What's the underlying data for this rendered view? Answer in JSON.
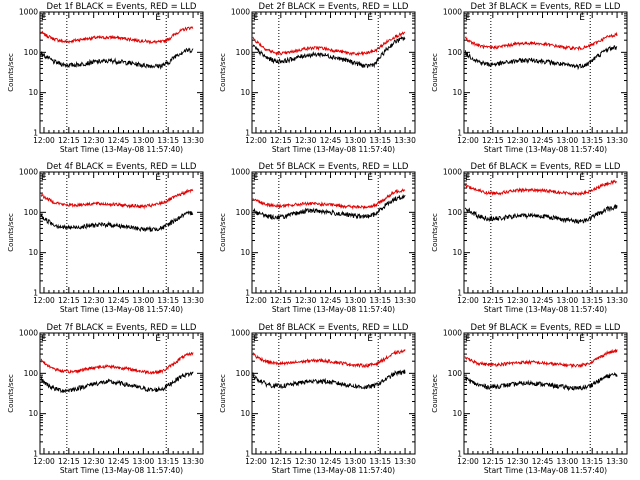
{
  "colors": {
    "events": "#000000",
    "lld": "#e00000",
    "frame": "#000000",
    "background": "#ffffff"
  },
  "chart_data": [
    {
      "type": "line",
      "yscale": "log",
      "grid": false,
      "title": "Det 1f BLACK = Events, RED = LLD",
      "xlabel": "Start Time (13-May-08 11:57:40)",
      "ylabel": "Counts/sec",
      "xtick_labels": [
        "12:00",
        "12:15",
        "12:30",
        "12:45",
        "13:00",
        "13:15",
        "13:30"
      ],
      "xlim": [
        -0.04,
        1.6
      ],
      "ylim": [
        1,
        1000
      ],
      "yticks": [
        1,
        10,
        100,
        1000
      ],
      "x_unit": "hours after 12:00",
      "markers": [
        "E",
        "E"
      ],
      "dotted_lines": [
        0.23,
        1.23
      ],
      "series": [
        {
          "name": "LLD",
          "color": "red",
          "x": [
            -0.03,
            0.0,
            0.1,
            0.2,
            0.25,
            0.35,
            0.5,
            0.7,
            0.85,
            1.0,
            1.1,
            1.18,
            1.25,
            1.33,
            1.42,
            1.5
          ],
          "values": [
            320,
            280,
            215,
            185,
            185,
            205,
            230,
            235,
            215,
            190,
            180,
            180,
            210,
            300,
            380,
            420
          ]
        },
        {
          "name": "Events",
          "color": "black",
          "x": [
            -0.03,
            0.0,
            0.1,
            0.2,
            0.25,
            0.35,
            0.5,
            0.7,
            0.85,
            1.0,
            1.1,
            1.18,
            1.25,
            1.33,
            1.42,
            1.5
          ],
          "values": [
            95,
            85,
            58,
            50,
            48,
            50,
            58,
            62,
            55,
            48,
            46,
            46,
            55,
            85,
            110,
            115
          ]
        }
      ]
    },
    {
      "type": "line",
      "yscale": "log",
      "grid": false,
      "title": "Det 2f BLACK = Events, RED = LLD",
      "xlabel": "Start Time (13-May-08 11:57:40)",
      "ylabel": "Counts/sec",
      "xtick_labels": [
        "12:00",
        "12:15",
        "12:30",
        "12:45",
        "13:00",
        "13:15",
        "13:30"
      ],
      "xlim": [
        -0.04,
        1.6
      ],
      "ylim": [
        1,
        1000
      ],
      "yticks": [
        1,
        10,
        100,
        1000
      ],
      "x_unit": "hours after 12:00",
      "markers": [
        "E",
        "E"
      ],
      "dotted_lines": [
        0.23,
        1.23
      ],
      "series": [
        {
          "name": "LLD",
          "color": "red",
          "x": [
            -0.03,
            0.0,
            0.1,
            0.2,
            0.3,
            0.5,
            0.65,
            0.8,
            1.0,
            1.1,
            1.2,
            1.3,
            1.4,
            1.5
          ],
          "values": [
            230,
            190,
            120,
            95,
            95,
            125,
            130,
            110,
            90,
            95,
            110,
            170,
            250,
            300
          ]
        },
        {
          "name": "Events",
          "color": "black",
          "x": [
            -0.03,
            0.0,
            0.1,
            0.2,
            0.3,
            0.5,
            0.65,
            0.8,
            1.0,
            1.1,
            1.2,
            1.3,
            1.4,
            1.5
          ],
          "values": [
            150,
            120,
            75,
            60,
            62,
            85,
            90,
            75,
            55,
            45,
            52,
            110,
            185,
            230
          ]
        }
      ]
    },
    {
      "type": "line",
      "yscale": "log",
      "grid": false,
      "title": "Det 3f BLACK = Events, RED = LLD",
      "xlabel": "Start Time (13-May-08 11:57:40)",
      "ylabel": "Counts/sec",
      "xtick_labels": [
        "12:00",
        "12:15",
        "12:30",
        "12:45",
        "13:00",
        "13:15",
        "13:30"
      ],
      "xlim": [
        -0.04,
        1.6
      ],
      "ylim": [
        1,
        1000
      ],
      "yticks": [
        1,
        10,
        100,
        1000
      ],
      "x_unit": "hours after 12:00",
      "markers": [
        "E",
        "E"
      ],
      "dotted_lines": [
        0.23,
        1.23
      ],
      "series": [
        {
          "name": "LLD",
          "color": "red",
          "x": [
            -0.03,
            0.0,
            0.1,
            0.2,
            0.3,
            0.5,
            0.65,
            0.8,
            1.0,
            1.1,
            1.2,
            1.3,
            1.4,
            1.5
          ],
          "values": [
            230,
            200,
            150,
            130,
            135,
            165,
            170,
            155,
            130,
            125,
            135,
            180,
            240,
            280
          ]
        },
        {
          "name": "Events",
          "color": "black",
          "x": [
            -0.03,
            0.0,
            0.1,
            0.2,
            0.3,
            0.5,
            0.65,
            0.8,
            1.0,
            1.1,
            1.2,
            1.3,
            1.4,
            1.5
          ],
          "values": [
            100,
            85,
            60,
            50,
            52,
            62,
            65,
            58,
            48,
            45,
            50,
            80,
            120,
            135
          ]
        }
      ]
    },
    {
      "type": "line",
      "yscale": "log",
      "grid": false,
      "title": "Det 4f BLACK = Events, RED = LLD",
      "xlabel": "Start Time (13-May-08 11:57:40)",
      "ylabel": "Counts/sec",
      "xtick_labels": [
        "12:00",
        "12:15",
        "12:30",
        "12:45",
        "13:00",
        "13:15",
        "13:30"
      ],
      "xlim": [
        -0.04,
        1.6
      ],
      "ylim": [
        1,
        1000
      ],
      "yticks": [
        1,
        10,
        100,
        1000
      ],
      "x_unit": "hours after 12:00",
      "markers": [
        "E",
        "E"
      ],
      "dotted_lines": [
        0.23,
        1.23
      ],
      "series": [
        {
          "name": "LLD",
          "color": "red",
          "x": [
            -0.03,
            0.0,
            0.1,
            0.2,
            0.3,
            0.5,
            0.65,
            0.8,
            1.0,
            1.1,
            1.2,
            1.3,
            1.4,
            1.5
          ],
          "values": [
            280,
            240,
            180,
            155,
            150,
            165,
            160,
            150,
            140,
            150,
            175,
            230,
            300,
            360
          ]
        },
        {
          "name": "Events",
          "color": "black",
          "x": [
            -0.03,
            0.0,
            0.1,
            0.2,
            0.3,
            0.5,
            0.65,
            0.8,
            1.0,
            1.1,
            1.2,
            1.3,
            1.4,
            1.5
          ],
          "values": [
            85,
            70,
            50,
            42,
            42,
            48,
            50,
            45,
            38,
            38,
            42,
            60,
            85,
            100
          ]
        }
      ]
    },
    {
      "type": "line",
      "yscale": "log",
      "grid": false,
      "title": "Det 5f BLACK = Events, RED = LLD",
      "xlabel": "Start Time (13-May-08 11:57:40)",
      "ylabel": "Counts/sec",
      "xtick_labels": [
        "12:00",
        "12:15",
        "12:30",
        "12:45",
        "13:00",
        "13:15",
        "13:30"
      ],
      "xlim": [
        -0.04,
        1.6
      ],
      "ylim": [
        1,
        1000
      ],
      "yticks": [
        1,
        10,
        100,
        1000
      ],
      "x_unit": "hours after 12:00",
      "markers": [
        "E",
        "E"
      ],
      "dotted_lines": [
        0.23,
        1.23
      ],
      "series": [
        {
          "name": "LLD",
          "color": "red",
          "x": [
            -0.03,
            0.0,
            0.1,
            0.2,
            0.3,
            0.5,
            0.65,
            0.8,
            1.0,
            1.1,
            1.2,
            1.3,
            1.4,
            1.5
          ],
          "values": [
            220,
            200,
            160,
            145,
            145,
            165,
            160,
            150,
            135,
            135,
            150,
            220,
            320,
            370
          ]
        },
        {
          "name": "Events",
          "color": "black",
          "x": [
            -0.03,
            0.0,
            0.1,
            0.2,
            0.3,
            0.5,
            0.65,
            0.8,
            1.0,
            1.1,
            1.2,
            1.3,
            1.4,
            1.5
          ],
          "values": [
            120,
            100,
            82,
            75,
            80,
            110,
            108,
            95,
            82,
            78,
            90,
            150,
            220,
            250
          ]
        }
      ]
    },
    {
      "type": "line",
      "yscale": "log",
      "grid": false,
      "title": "Det 6f BLACK = Events, RED = LLD",
      "xlabel": "Start Time (13-May-08 11:57:40)",
      "ylabel": "Counts/sec",
      "xtick_labels": [
        "12:00",
        "12:15",
        "12:30",
        "12:45",
        "13:00",
        "13:15",
        "13:30"
      ],
      "xlim": [
        -0.04,
        1.6
      ],
      "ylim": [
        1,
        1000
      ],
      "yticks": [
        1,
        10,
        100,
        1000
      ],
      "x_unit": "hours after 12:00",
      "markers": [
        "E",
        "E"
      ],
      "dotted_lines": [
        0.23,
        1.23
      ],
      "series": [
        {
          "name": "LLD",
          "color": "red",
          "x": [
            -0.03,
            0.0,
            0.1,
            0.2,
            0.3,
            0.5,
            0.65,
            0.8,
            1.0,
            1.1,
            1.2,
            1.3,
            1.4,
            1.5
          ],
          "values": [
            480,
            440,
            350,
            300,
            300,
            350,
            360,
            340,
            300,
            290,
            310,
            400,
            520,
            600
          ]
        },
        {
          "name": "Events",
          "color": "black",
          "x": [
            -0.03,
            0.0,
            0.1,
            0.2,
            0.3,
            0.5,
            0.65,
            0.8,
            1.0,
            1.1,
            1.2,
            1.3,
            1.4,
            1.5
          ],
          "values": [
            130,
            115,
            82,
            70,
            70,
            82,
            85,
            78,
            65,
            60,
            65,
            90,
            120,
            140
          ]
        }
      ]
    },
    {
      "type": "line",
      "yscale": "log",
      "grid": false,
      "title": "Det 7f BLACK = Events, RED = LLD",
      "xlabel": "Start Time (13-May-08 11:57:40)",
      "ylabel": "Counts/sec",
      "xtick_labels": [
        "12:00",
        "12:15",
        "12:30",
        "12:45",
        "13:00",
        "13:15",
        "13:30"
      ],
      "xlim": [
        -0.04,
        1.6
      ],
      "ylim": [
        1,
        1000
      ],
      "yticks": [
        1,
        10,
        100,
        1000
      ],
      "x_unit": "hours after 12:00",
      "markers": [
        "E",
        "E"
      ],
      "dotted_lines": [
        0.23,
        1.23
      ],
      "series": [
        {
          "name": "LLD",
          "color": "red",
          "x": [
            -0.03,
            0.0,
            0.1,
            0.2,
            0.3,
            0.5,
            0.65,
            0.8,
            1.0,
            1.1,
            1.2,
            1.3,
            1.4,
            1.5
          ],
          "values": [
            220,
            180,
            130,
            110,
            110,
            140,
            150,
            135,
            110,
            105,
            115,
            170,
            260,
            320
          ]
        },
        {
          "name": "Events",
          "color": "black",
          "x": [
            -0.03,
            0.0,
            0.1,
            0.2,
            0.3,
            0.5,
            0.65,
            0.8,
            1.0,
            1.1,
            1.2,
            1.3,
            1.4,
            1.5
          ],
          "values": [
            75,
            60,
            42,
            37,
            40,
            55,
            62,
            55,
            42,
            38,
            42,
            62,
            90,
            100
          ]
        }
      ]
    },
    {
      "type": "line",
      "yscale": "log",
      "grid": false,
      "title": "Det 8f BLACK = Events, RED = LLD",
      "xlabel": "Start Time (13-May-08 11:57:40)",
      "ylabel": "Counts/sec",
      "xtick_labels": [
        "12:00",
        "12:15",
        "12:30",
        "12:45",
        "13:00",
        "13:15",
        "13:30"
      ],
      "xlim": [
        -0.04,
        1.6
      ],
      "ylim": [
        1,
        1000
      ],
      "yticks": [
        1,
        10,
        100,
        1000
      ],
      "x_unit": "hours after 12:00",
      "markers": [
        "E",
        "E"
      ],
      "dotted_lines": [
        0.23,
        1.23
      ],
      "series": [
        {
          "name": "LLD",
          "color": "red",
          "x": [
            -0.03,
            0.0,
            0.1,
            0.2,
            0.3,
            0.5,
            0.65,
            0.8,
            1.0,
            1.1,
            1.2,
            1.3,
            1.4,
            1.5
          ],
          "values": [
            320,
            260,
            200,
            175,
            175,
            200,
            210,
            190,
            160,
            155,
            170,
            230,
            320,
            360
          ]
        },
        {
          "name": "Events",
          "color": "black",
          "x": [
            -0.03,
            0.0,
            0.1,
            0.2,
            0.3,
            0.5,
            0.65,
            0.8,
            1.0,
            1.1,
            1.2,
            1.3,
            1.4,
            1.5
          ],
          "values": [
            95,
            75,
            55,
            48,
            50,
            62,
            65,
            58,
            48,
            45,
            50,
            70,
            100,
            110
          ]
        }
      ]
    },
    {
      "type": "line",
      "yscale": "log",
      "grid": false,
      "title": "Det 9f BLACK = Events, RED = LLD",
      "xlabel": "Start Time (13-May-08 11:57:40)",
      "ylabel": "Counts/sec",
      "xtick_labels": [
        "12:00",
        "12:15",
        "12:30",
        "12:45",
        "13:00",
        "13:15",
        "13:30"
      ],
      "xlim": [
        -0.04,
        1.6
      ],
      "ylim": [
        1,
        1000
      ],
      "yticks": [
        1,
        10,
        100,
        1000
      ],
      "x_unit": "hours after 12:00",
      "markers": [
        "E",
        "E"
      ],
      "dotted_lines": [
        0.23,
        1.23
      ],
      "series": [
        {
          "name": "LLD",
          "color": "red",
          "x": [
            -0.03,
            0.0,
            0.1,
            0.2,
            0.3,
            0.5,
            0.65,
            0.8,
            1.0,
            1.1,
            1.2,
            1.3,
            1.4,
            1.5
          ],
          "values": [
            260,
            220,
            180,
            165,
            165,
            185,
            190,
            175,
            160,
            155,
            170,
            230,
            320,
            360
          ]
        },
        {
          "name": "Events",
          "color": "black",
          "x": [
            -0.03,
            0.0,
            0.1,
            0.2,
            0.3,
            0.5,
            0.65,
            0.8,
            1.0,
            1.1,
            1.2,
            1.3,
            1.4,
            1.5
          ],
          "values": [
            80,
            68,
            52,
            46,
            48,
            55,
            58,
            52,
            45,
            42,
            46,
            62,
            85,
            95
          ]
        }
      ]
    }
  ]
}
